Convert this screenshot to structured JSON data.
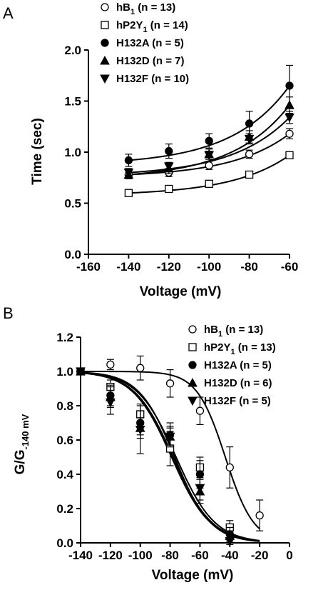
{
  "chart_data": [
    {
      "panel_label": "A",
      "type": "line",
      "xlabel": "Voltage (mV)",
      "ylabel": "Time (sec)",
      "xlim": [
        -160,
        -60
      ],
      "ylim": [
        0.0,
        2.0
      ],
      "xticks": [
        "-160",
        "-140",
        "-120",
        "-100",
        "-80",
        "-60"
      ],
      "yticks": [
        "0.0",
        "0.5",
        "1.0",
        "1.5",
        "2.0"
      ],
      "legend_position": "top-center",
      "x": [
        -140,
        -120,
        -100,
        -80,
        -60
      ],
      "series": [
        {
          "name": "hB",
          "sub": "1",
          "n": " (n = 13)",
          "marker": "circle-open",
          "values": [
            0.78,
            0.8,
            0.87,
            0.98,
            1.18
          ],
          "errors": [
            0.04,
            0.04,
            0.04,
            0.04,
            0.05
          ]
        },
        {
          "name": "hP2Y",
          "sub": "1",
          "n": " (n = 14)",
          "marker": "square-open",
          "values": [
            0.6,
            0.64,
            0.69,
            0.78,
            0.97
          ],
          "errors": [
            0.02,
            0.02,
            0.02,
            0.02,
            0.03
          ]
        },
        {
          "name": "H132A",
          "sub": "",
          "n": " (n = 5)",
          "marker": "circle",
          "values": [
            0.92,
            1.01,
            1.11,
            1.28,
            1.65
          ],
          "errors": [
            0.06,
            0.07,
            0.07,
            0.12,
            0.2
          ]
        },
        {
          "name": "H132D",
          "sub": "",
          "n": " (n = 7)",
          "marker": "triangle-up",
          "values": [
            0.78,
            0.84,
            0.98,
            1.15,
            1.46
          ],
          "errors": [
            0.04,
            0.05,
            0.05,
            0.06,
            0.08
          ]
        },
        {
          "name": "H132F",
          "sub": "",
          "n": " (n = 10)",
          "marker": "triangle-down",
          "values": [
            0.8,
            0.86,
            0.97,
            1.13,
            1.34
          ],
          "errors": [
            0.04,
            0.04,
            0.04,
            0.05,
            0.06
          ]
        }
      ]
    },
    {
      "panel_label": "B",
      "type": "line",
      "xlabel": "Voltage (mV)",
      "ylabel_main": "G/G",
      "ylabel_sub": "-140 mV",
      "xlim": [
        -140,
        0
      ],
      "ylim": [
        0.0,
        1.2
      ],
      "xticks": [
        "-140",
        "-120",
        "-100",
        "-80",
        "-60",
        "-40",
        "-20",
        "0"
      ],
      "yticks": [
        "0.0",
        "0.2",
        "0.4",
        "0.6",
        "0.8",
        "1.0",
        "1.2"
      ],
      "legend_position": "top-right",
      "x": [
        -140,
        -120,
        -100,
        -80,
        -60,
        -40,
        -20
      ],
      "series": [
        {
          "name": "hB",
          "sub": "1",
          "n": " (n = 13)",
          "marker": "circle-open",
          "values": [
            1.0,
            1.04,
            1.02,
            0.93,
            0.77,
            0.44,
            0.16
          ],
          "errors": [
            0.01,
            0.03,
            0.07,
            0.08,
            0.08,
            0.12,
            0.09
          ],
          "v_half": -43,
          "slope": 9.5
        },
        {
          "name": "hP2Y",
          "sub": "1",
          "n": " (n = 13)",
          "marker": "square-open",
          "values": [
            1.0,
            0.91,
            0.75,
            0.55,
            0.44,
            0.09,
            null
          ],
          "errors": [
            0.01,
            0.04,
            0.06,
            0.1,
            0.06,
            0.04,
            null
          ],
          "v_half": -78,
          "slope": 13
        },
        {
          "name": "H132A",
          "sub": "",
          "n": " (n = 5)",
          "marker": "circle",
          "values": [
            1.0,
            0.86,
            0.7,
            0.63,
            0.4,
            0.05,
            null
          ],
          "errors": [
            0.01,
            0.06,
            0.07,
            0.07,
            0.08,
            0.04,
            null
          ],
          "v_half": -76,
          "slope": 13
        },
        {
          "name": "H132D",
          "sub": "",
          "n": " (n = 6)",
          "marker": "triangle-up",
          "values": [
            1.0,
            0.85,
            0.67,
            0.62,
            0.3,
            0.04,
            null
          ],
          "errors": [
            0.01,
            0.06,
            0.06,
            0.05,
            0.07,
            0.03,
            null
          ],
          "v_half": -79,
          "slope": 13
        },
        {
          "name": "H132F",
          "sub": "",
          "n": " (n = 5)",
          "marker": "triangle-down",
          "values": [
            1.0,
            0.82,
            0.66,
            0.62,
            0.32,
            0.01,
            null
          ],
          "errors": [
            0.01,
            0.07,
            0.14,
            0.06,
            0.07,
            0.02,
            null
          ],
          "v_half": -77,
          "slope": 12
        }
      ]
    }
  ]
}
